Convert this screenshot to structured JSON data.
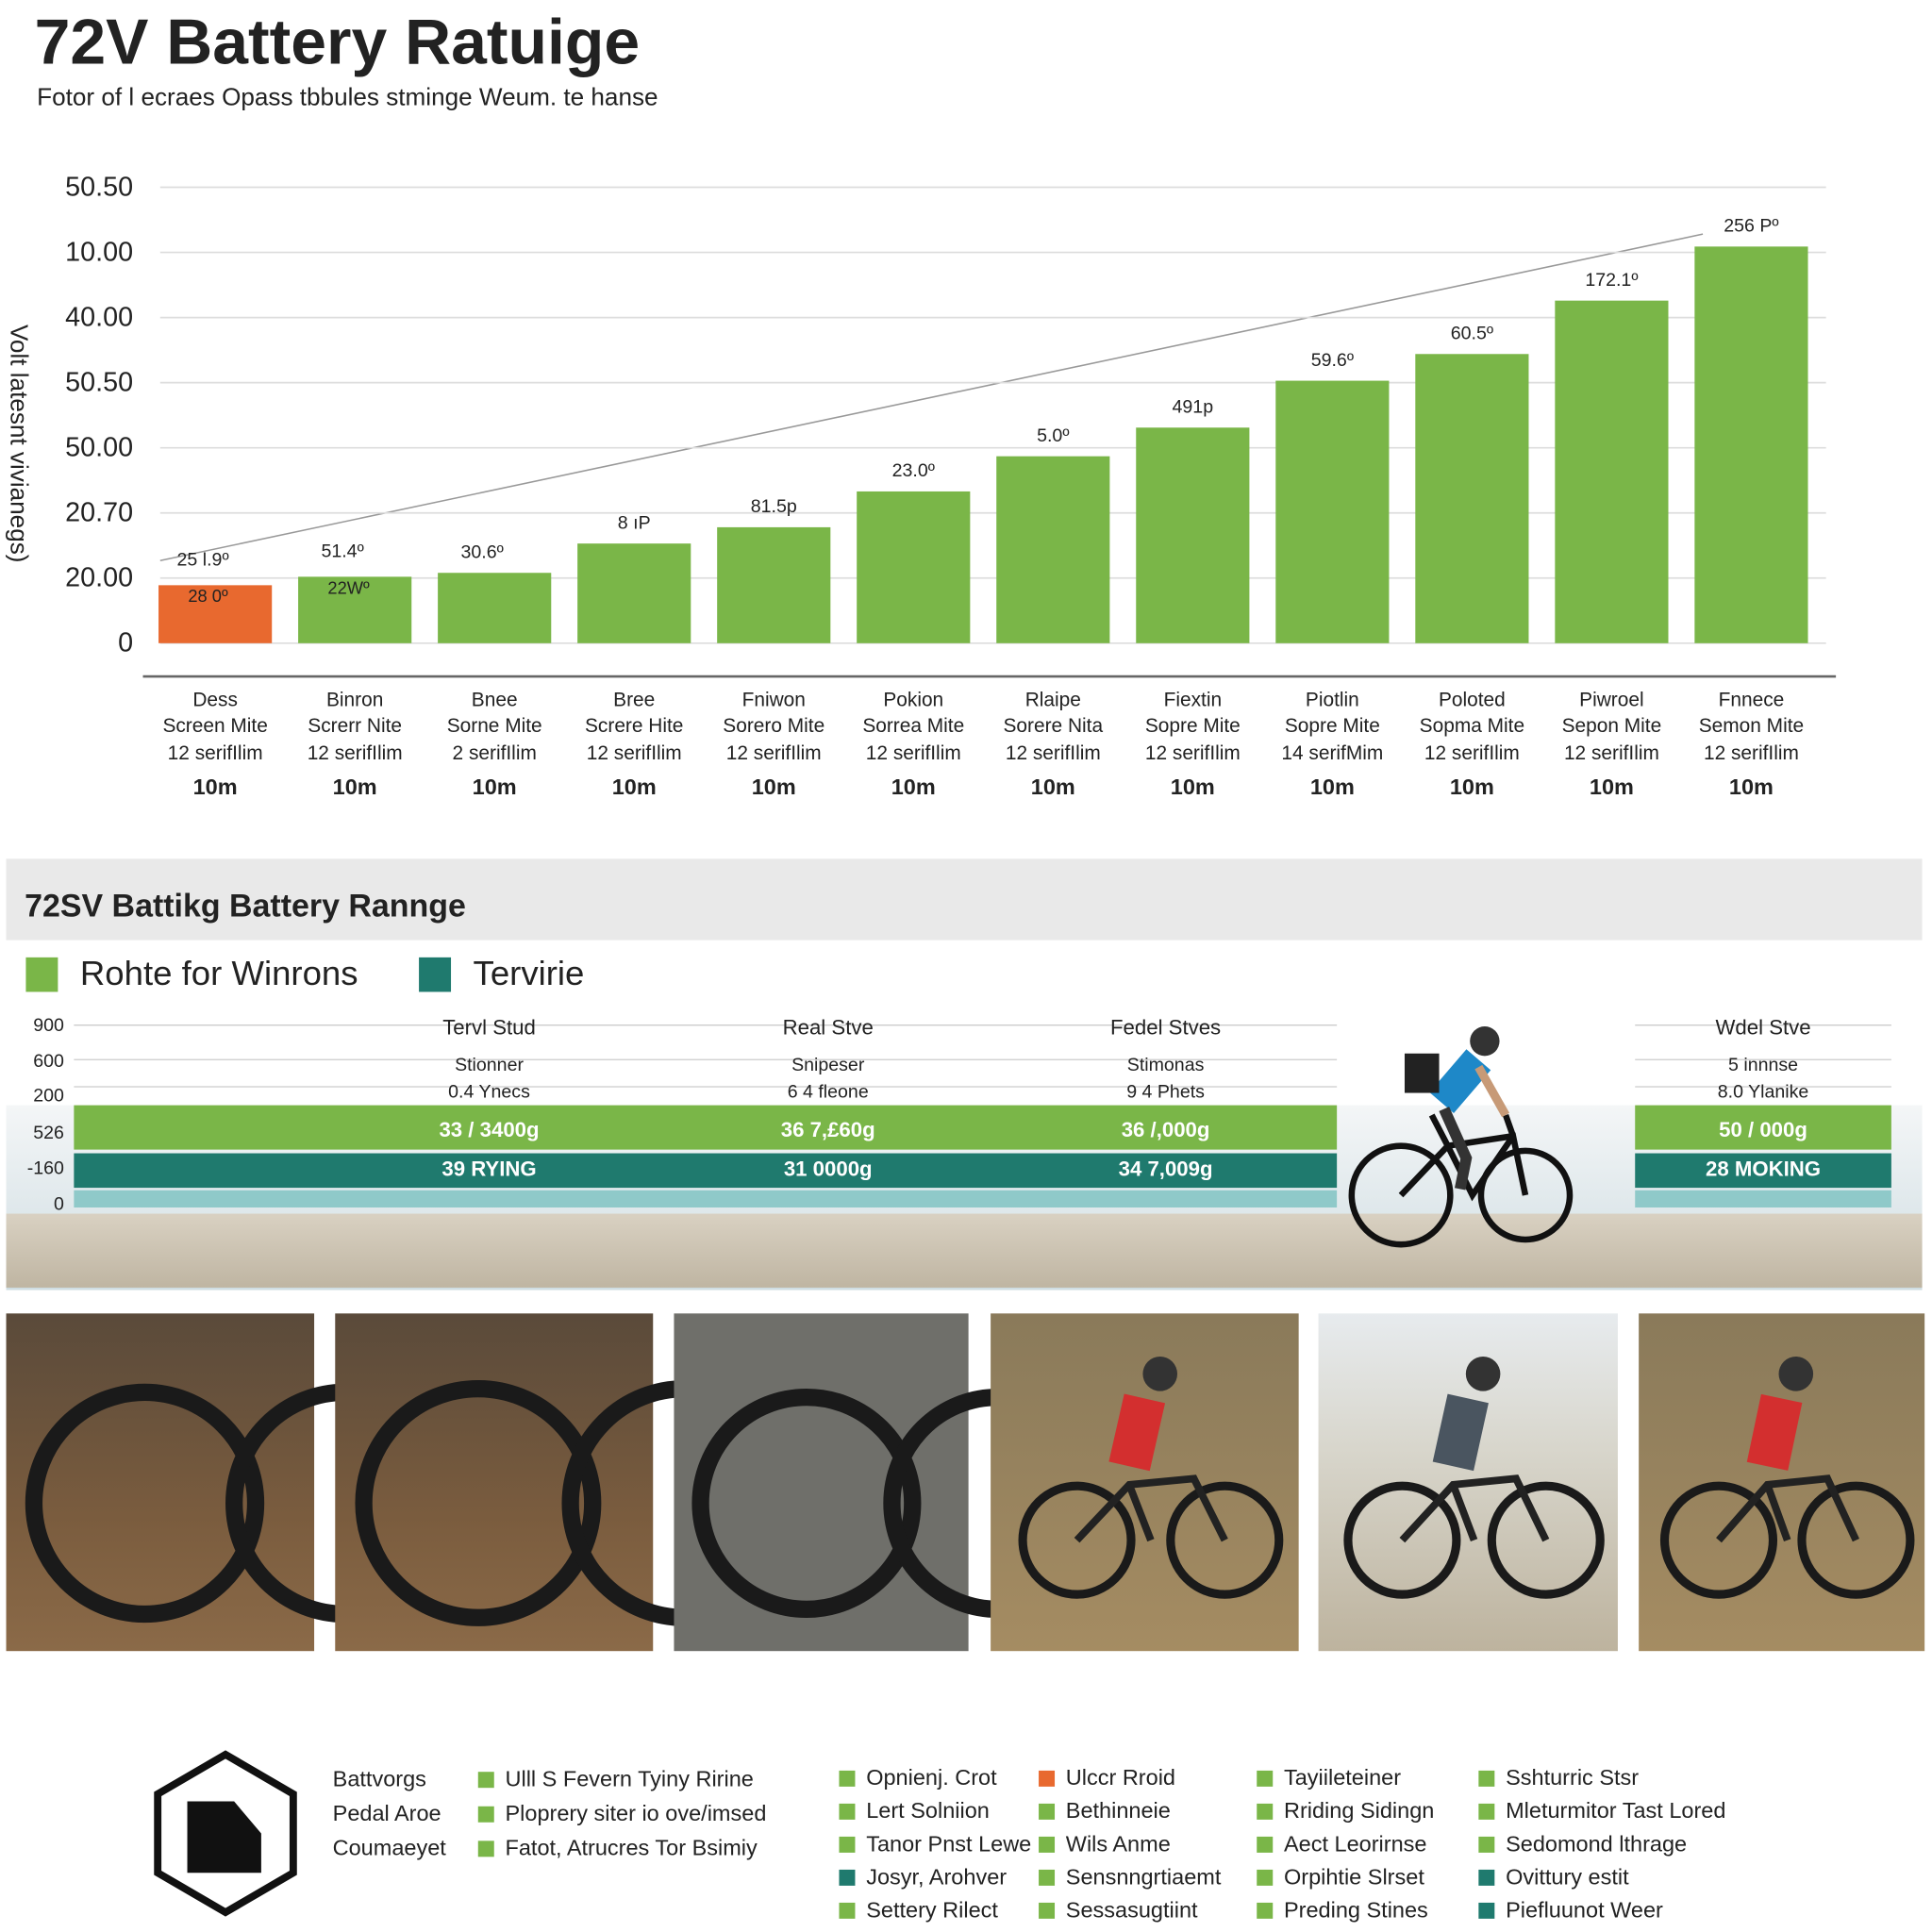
{
  "chart_data": {
    "type": "bar",
    "title": "72V Battery Ratuige",
    "subtitle": "Fotor of l ecraes Opass tbbules stminge Weum. te hanse",
    "y_label": "Volt latesnt vivianegs)",
    "categories": [
      "Dess",
      "Binron",
      "Bnee",
      "Bree",
      "Fniwon",
      "Pokion",
      "Rlaipe",
      "Fiextin",
      "Piotlin",
      "Poloted",
      "Piwroel",
      "Fnnece"
    ],
    "category_lines": [
      [
        "Screen Mite",
        "12 serifIlim",
        "10m"
      ],
      [
        "Screrr Nite",
        "12 serifIlim",
        "10m"
      ],
      [
        "Sorne Mite",
        "2 serifIlim",
        "10m"
      ],
      [
        "Screre Hite",
        "12 serifIlim",
        "10m"
      ],
      [
        "Sorero Mite",
        "12 serifIlim",
        "10m"
      ],
      [
        "Sorrea Mite",
        "12 serifIlim",
        "10m"
      ],
      [
        "Sorere Nita",
        "12 serifIlim",
        "10m"
      ],
      [
        "Sopre Mite",
        "12 serifIlim",
        "10m"
      ],
      [
        "Sopre Mite",
        "14 serifMim",
        "10m"
      ],
      [
        "Sopma Mite",
        "12 serifIlim",
        "10m"
      ],
      [
        "Sepon Mite",
        "12 serifIlim",
        "10m"
      ],
      [
        "Semon Mite",
        "12 serifIlim",
        "10m"
      ]
    ],
    "values": [
      8.9,
      10.2,
      10.8,
      15.3,
      17.8,
      23.3,
      28.7,
      33.1,
      40.3,
      44.4,
      52.6,
      60.9
    ],
    "colors": [
      "#e8692f",
      "#7ab648",
      "#7ab648",
      "#7ab648",
      "#7ab648",
      "#7ab648",
      "#7ab648",
      "#7ab648",
      "#7ab648",
      "#7ab648",
      "#7ab648",
      "#7ab648"
    ],
    "value_notes": [
      "25 l.9º",
      "51.4º",
      "30.6º",
      "8 ıP",
      "81.5p",
      "23.0º",
      "5.0º",
      "491p",
      "59.6º",
      "60.5º",
      "172.1º",
      "256 Pº"
    ],
    "inner_notes": [
      "28 0º",
      "22Wº"
    ],
    "ylim": [
      0,
      70
    ],
    "yticks": [
      0,
      {
        "value": 10,
        "label": "20.00"
      },
      {
        "value": 20,
        "label": "20.70"
      },
      {
        "value": 30,
        "label": "50.00"
      },
      {
        "value": 40,
        "label": "50.50"
      },
      {
        "value": 50,
        "label": "40.00"
      },
      {
        "value": 60,
        "label": "10.00"
      },
      {
        "value": 70,
        "label": "50.50"
      }
    ],
    "grid": true
  },
  "range_panel": {
    "title": "72SV Battikg Battery Rannge",
    "legend": [
      {
        "name": "Rohte for Winrons",
        "color": "#7ab648"
      },
      {
        "name": "Tervirie",
        "color": "#1f7a6e"
      }
    ],
    "row_labels": [
      "900",
      "600",
      "200",
      "526",
      "-160",
      "0"
    ],
    "columns": [
      {
        "title": "Tervl Stud",
        "line1": "Stionner",
        "line2": "0.4 Ynecs",
        "bar1": "33 / 3400g",
        "bar2": "39 RYING"
      },
      {
        "title": "Real Stve",
        "line1": "Snipeser",
        "line2": "6 4 fleone",
        "bar1": "36 7,£60g",
        "bar2": "31 0000g"
      },
      {
        "title": "Fedel Stves",
        "line1": "Stimonas",
        "line2": "9 4 Phets",
        "bar1": "36 /,000g",
        "bar2": "34 7,009g"
      },
      {
        "title": "Wdel Stve",
        "line1": "5 innnse",
        "line2": "8.0 Ylanike",
        "bar1": "50 / 000g",
        "bar2": "28 MOKING"
      }
    ]
  },
  "key": {
    "labels": [
      "Battvorgs",
      "Pedal Aroe",
      "Coumaeyet"
    ],
    "columns": [
      [
        {
          "text": "Ulll S Fevern Tyiny Ririne",
          "color": "#7ab648"
        },
        {
          "text": "Ploprery siter io ove/imsed",
          "color": "#7ab648"
        },
        {
          "text": "Fatot, Atrucres Tor Bsimiy",
          "color": "#7ab648"
        }
      ],
      [
        {
          "text": "Opnienj. Crot",
          "color": "#7ab648"
        },
        {
          "text": "Lert Solniion",
          "color": "#7ab648"
        },
        {
          "text": "Tanor Pnst Lewe",
          "color": "#7ab648"
        },
        {
          "text": "Josyr, Arohver",
          "color": "#1f7a6e"
        },
        {
          "text": "Settery Rilect",
          "color": "#7ab648"
        }
      ],
      [
        {
          "text": "Ulccr Rroid",
          "color": "#e8692f"
        },
        {
          "text": "Bethinneie",
          "color": "#7ab648"
        },
        {
          "text": "Wils Anme",
          "color": "#7ab648"
        },
        {
          "text": "Sensnngrtiaemt",
          "color": "#7ab648"
        },
        {
          "text": "Sessasugtiint",
          "color": "#7ab648"
        }
      ],
      [
        {
          "text": "Tayiileteiner",
          "color": "#7ab648"
        },
        {
          "text": "Rriding Sidingn",
          "color": "#7ab648"
        },
        {
          "text": "Aect Leorirnse",
          "color": "#7ab648"
        },
        {
          "text": "Orpihtie Slrset",
          "color": "#7ab648"
        },
        {
          "text": "Preding Stines",
          "color": "#7ab648"
        }
      ],
      [
        {
          "text": "Sshturric Stsr",
          "color": "#7ab648"
        },
        {
          "text": "Mleturmitor Tast Lored",
          "color": "#7ab648"
        },
        {
          "text": "Sedomond lthrage",
          "color": "#7ab648"
        },
        {
          "text": "Ovittury estit",
          "color": "#1f7a6e"
        },
        {
          "text": "Piefluunot Weer",
          "color": "#1f7a6e"
        }
      ]
    ]
  }
}
